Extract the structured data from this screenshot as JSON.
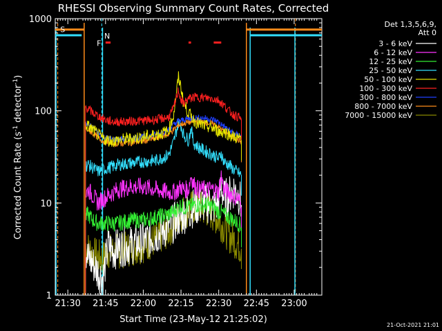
{
  "chart_data": {
    "type": "line",
    "title": "RHESSI Observing Summary Count Rates, Corrected",
    "xlabel": "Start Time (23-May-12 21:25:02)",
    "ylabel": "Corrected Count Rate (s⁻¹ detector⁻¹)",
    "ylabel_parts": {
      "main": "Corrected Count Rate (s",
      "sup1": "-1",
      "mid": " detector",
      "sup2": "-1",
      "end": ")"
    },
    "yscale": "log",
    "xlim_min": [
      25,
      131
    ],
    "ylim": [
      1,
      1000
    ],
    "x_ticks": [
      {
        "value": 30,
        "label": "21:30"
      },
      {
        "value": 45,
        "label": "21:45"
      },
      {
        "value": 60,
        "label": "22:00"
      },
      {
        "value": 75,
        "label": "22:15"
      },
      {
        "value": 90,
        "label": "22:30"
      },
      {
        "value": 105,
        "label": "22:45"
      },
      {
        "value": 120,
        "label": "23:00"
      }
    ],
    "y_ticks": [
      {
        "value": 1,
        "label": "1"
      },
      {
        "value": 10,
        "label": "10"
      },
      {
        "value": 100,
        "label": "100"
      },
      {
        "value": 1000,
        "label": "1000"
      }
    ],
    "legend_header": [
      "Det 1,3,5,6,9,",
      "Att 0"
    ],
    "legend_position": "right",
    "timestamp": "21-Oct-2021 21:01",
    "flags": {
      "S": {
        "label": "S",
        "color": "#ff8c1a"
      },
      "N": {
        "label": "N",
        "color": "#33e0ff"
      },
      "F": {
        "label": "F",
        "color": "#ff2020"
      }
    },
    "flag_segments": {
      "S_orange": [
        [
          25,
          36.5
        ],
        [
          101,
          131
        ]
      ],
      "N_cyan": [
        [
          25,
          35.5
        ],
        [
          102.5,
          131
        ]
      ],
      "F_red": [
        [
          45,
          47
        ],
        [
          78,
          79
        ],
        [
          88,
          91
        ]
      ]
    },
    "orange_dashed_lines": [
      26,
      120.5
    ],
    "cyan_dashed_line": 43.5,
    "orange_solid_line": [
      36.5,
      101
    ],
    "cyan_solid_lines": [
      25.3,
      43.8,
      102.5,
      120.3
    ],
    "series": [
      {
        "name": "3 - 6 keV",
        "color": "#ffffff",
        "x": [
          37,
          38,
          40,
          42,
          44,
          46,
          48,
          50,
          55,
          60,
          65,
          70,
          72,
          74,
          75,
          76,
          78,
          80,
          82,
          85,
          88,
          90,
          91,
          92,
          94,
          96,
          98,
          99
        ],
        "y": [
          3.2,
          2.5,
          2.2,
          1.8,
          1.5,
          3.5,
          3.0,
          3.3,
          3.5,
          3.8,
          4.5,
          5.5,
          6.0,
          7.0,
          6.5,
          7.5,
          8.0,
          9.0,
          9.5,
          10,
          9.0,
          10,
          16,
          11,
          12,
          14,
          12,
          9.5
        ]
      },
      {
        "name": "6 - 12 keV",
        "color": "#ff33ff",
        "x": [
          37,
          38,
          40,
          42,
          44,
          46,
          48,
          50,
          55,
          60,
          65,
          70,
          72,
          74,
          75,
          76,
          78,
          79,
          80,
          82,
          85,
          88,
          90,
          91,
          92,
          94,
          96,
          98,
          99
        ],
        "y": [
          12,
          14,
          12,
          10,
          11,
          12,
          13,
          14,
          15,
          15,
          14,
          13,
          13,
          14,
          15,
          14,
          14,
          20,
          16,
          14,
          14,
          14,
          13,
          20,
          14,
          13,
          12,
          11,
          9.0
        ]
      },
      {
        "name": "12 - 25 keV",
        "color": "#33ee33",
        "x": [
          37,
          38,
          40,
          42,
          44,
          46,
          48,
          50,
          55,
          60,
          65,
          70,
          72,
          74,
          75,
          76,
          78,
          80,
          82,
          85,
          88,
          90,
          91,
          92,
          94,
          96,
          98,
          99
        ],
        "y": [
          7.0,
          7.5,
          6.5,
          6.0,
          6.0,
          6.0,
          6.0,
          6.0,
          6.5,
          6.5,
          7.0,
          7.5,
          8.0,
          9.0,
          9.5,
          9.0,
          9.0,
          9.5,
          9.5,
          9.5,
          9.0,
          8.0,
          8.0,
          7.5,
          7.0,
          6.5,
          6.0,
          5.5
        ]
      },
      {
        "name": "25 - 50 keV",
        "color": "#33e0ff",
        "x": [
          37,
          38,
          40,
          42,
          44,
          46,
          48,
          50,
          55,
          60,
          65,
          70,
          72,
          74,
          75,
          76,
          78,
          79,
          80,
          82,
          85,
          88,
          90,
          91,
          92,
          94,
          96,
          98,
          99
        ],
        "y": [
          25,
          26,
          24,
          22,
          23,
          24,
          25,
          26,
          27,
          28,
          29,
          33,
          45,
          75,
          70,
          55,
          48,
          65,
          45,
          40,
          36,
          33,
          30,
          35,
          28,
          26,
          23,
          21,
          20
        ]
      },
      {
        "name": "50 - 100 keV",
        "color": "#e8e800",
        "x": [
          37,
          38,
          40,
          42,
          44,
          46,
          48,
          50,
          55,
          60,
          65,
          70,
          72,
          74,
          75,
          76,
          78,
          80,
          82,
          85,
          88,
          90,
          91,
          92,
          94,
          96,
          98,
          99
        ],
        "y": [
          70,
          68,
          62,
          55,
          50,
          48,
          47,
          48,
          50,
          52,
          55,
          60,
          90,
          230,
          180,
          120,
          95,
          80,
          72,
          68,
          64,
          60,
          58,
          60,
          56,
          52,
          50,
          48
        ]
      },
      {
        "name": "100 - 300 keV",
        "color": "#ff2020",
        "x": [
          37,
          38,
          40,
          42,
          44,
          46,
          48,
          50,
          55,
          60,
          65,
          70,
          72,
          74,
          75,
          76,
          78,
          80,
          82,
          85,
          88,
          90,
          92,
          94,
          96,
          98,
          99
        ],
        "y": [
          110,
          105,
          95,
          88,
          82,
          78,
          76,
          76,
          77,
          78,
          80,
          85,
          105,
          170,
          130,
          120,
          135,
          140,
          140,
          138,
          135,
          130,
          115,
          100,
          90,
          85,
          80
        ]
      },
      {
        "name": "300 - 800 keV",
        "color": "#2040ff",
        "x": [
          37,
          38,
          40,
          42,
          44,
          46,
          48,
          50,
          55,
          60,
          65,
          70,
          72,
          74,
          75,
          76,
          78,
          80,
          82,
          85,
          88,
          90,
          92,
          94,
          96,
          98,
          99
        ],
        "y": [
          72,
          70,
          65,
          58,
          53,
          50,
          49,
          49,
          50,
          52,
          55,
          62,
          70,
          78,
          78,
          80,
          82,
          84,
          84,
          83,
          80,
          75,
          68,
          62,
          57,
          54,
          52
        ]
      },
      {
        "name": "800 - 7000 keV",
        "color": "#ff8c1a",
        "x": [
          37,
          38,
          40,
          42,
          44,
          46,
          48,
          50,
          55,
          60,
          65,
          70,
          72,
          74,
          75,
          76,
          78,
          80,
          82,
          85,
          88,
          90,
          92,
          94,
          96,
          98,
          99
        ],
        "y": [
          65,
          62,
          57,
          51,
          47,
          45,
          44,
          44,
          45,
          47,
          50,
          56,
          62,
          70,
          71,
          73,
          75,
          77,
          77,
          75,
          72,
          67,
          60,
          55,
          51,
          48,
          46
        ]
      },
      {
        "name": "7000 - 15000 keV",
        "color": "#8a8a00",
        "x": [
          37,
          38,
          40,
          42,
          44,
          46,
          48,
          50,
          55,
          60,
          65,
          70,
          72,
          74,
          75,
          76,
          78,
          80,
          82,
          85,
          88,
          90,
          92,
          94,
          96,
          98,
          99
        ],
        "y": [
          3.5,
          3.2,
          2.8,
          2.6,
          2.5,
          3.0,
          3.0,
          3.0,
          3.2,
          3.5,
          4.0,
          5.0,
          6.0,
          7.0,
          7.5,
          8.0,
          8.5,
          9.0,
          9.0,
          8.5,
          7.5,
          6.5,
          5.5,
          4.5,
          4.0,
          3.5,
          3.2
        ]
      }
    ]
  }
}
